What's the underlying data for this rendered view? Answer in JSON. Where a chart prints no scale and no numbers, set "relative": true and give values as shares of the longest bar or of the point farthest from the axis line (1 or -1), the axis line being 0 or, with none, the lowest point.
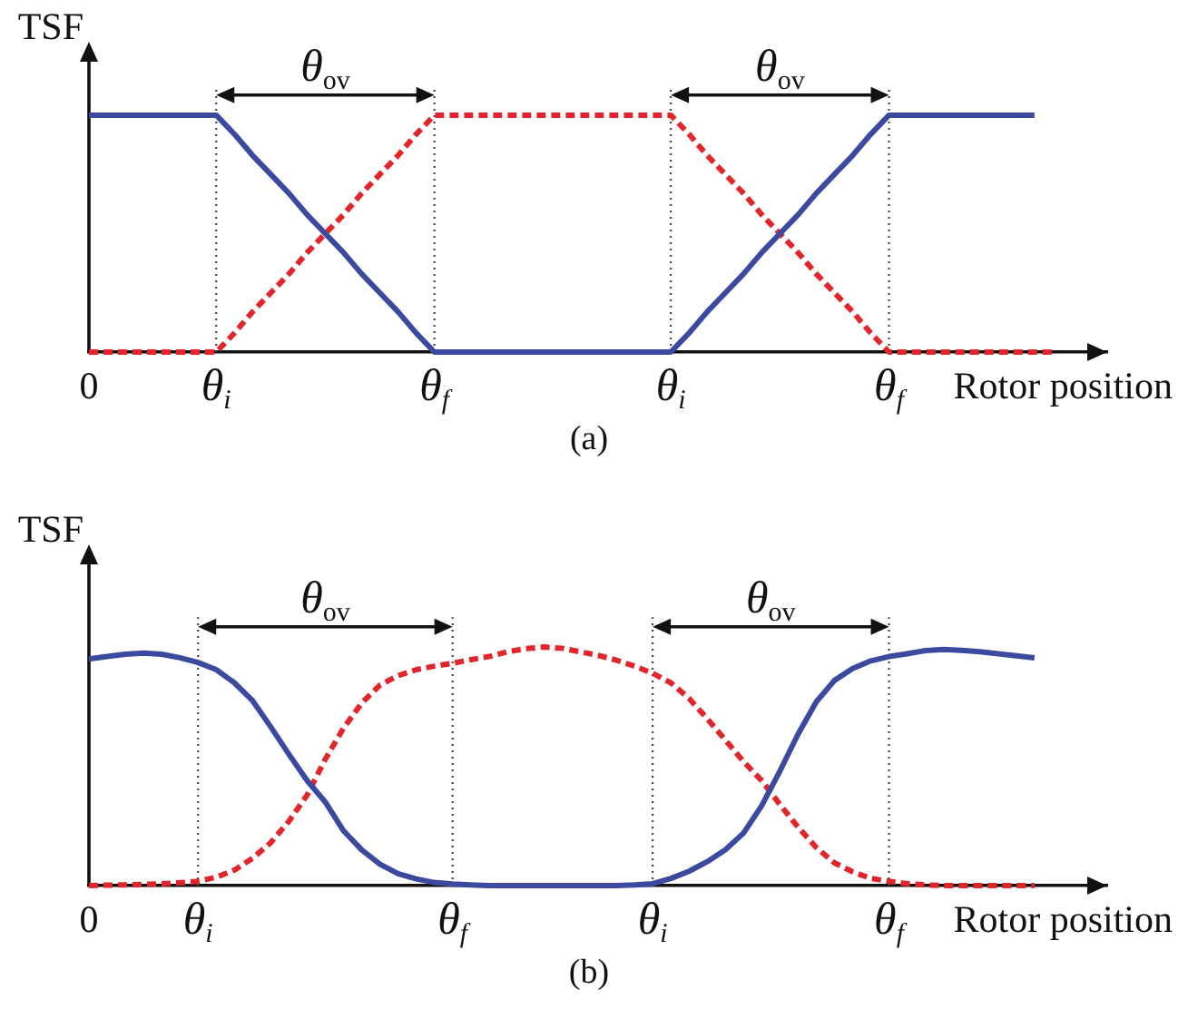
{
  "chart_data": [
    {
      "type": "line",
      "title": "(a)",
      "xlabel": "Rotor position",
      "ylabel": "TSF",
      "relative": true,
      "marker": "none",
      "grid": "x",
      "categories": [
        "0",
        null,
        null,
        null,
        null,
        null,
        null,
        "θ$_{i}$",
        null,
        null,
        null,
        null,
        null,
        null,
        null,
        null,
        null,
        null,
        null,
        "θ$_{f}$",
        null,
        null,
        null,
        null,
        null,
        null,
        null,
        null,
        null,
        null,
        null,
        null,
        "θ$_{i}$",
        null,
        null,
        null,
        null,
        null,
        null,
        null,
        null,
        null,
        null,
        null,
        "θ$_{f}$",
        null,
        null,
        null,
        null,
        null,
        null,
        null,
        null,
        null,
        null,
        null,
        null
      ],
      "series": [
        {
          "color": "#3b4a9e",
          "line_style": "solid",
          "values": [
            1,
            1,
            1,
            1,
            1,
            1,
            1,
            1,
            0.92,
            0.83,
            0.75,
            0.67,
            0.58,
            0.5,
            0.42,
            0.33,
            0.25,
            0.17,
            0.08,
            0,
            0,
            0,
            0,
            0,
            0,
            0,
            0,
            0,
            0,
            0,
            0,
            0,
            0,
            0.08,
            0.17,
            0.25,
            0.33,
            0.42,
            0.5,
            0.58,
            0.67,
            0.75,
            0.83,
            0.92,
            1,
            1,
            1,
            1,
            1,
            1,
            1,
            1,
            1,
            null,
            null,
            null,
            null
          ]
        },
        {
          "color": "#e2252b",
          "line_style": "dashed",
          "values": [
            0,
            0,
            0,
            0,
            0,
            0,
            0,
            0,
            0.08,
            0.17,
            0.25,
            0.33,
            0.42,
            0.5,
            0.58,
            0.67,
            0.75,
            0.83,
            0.92,
            1,
            1,
            1,
            1,
            1,
            1,
            1,
            1,
            1,
            1,
            1,
            1,
            1,
            1,
            0.92,
            0.83,
            0.75,
            0.67,
            0.58,
            0.5,
            0.42,
            0.33,
            0.25,
            0.17,
            0.08,
            0,
            0,
            0,
            0,
            0,
            0,
            0,
            0,
            0,
            0,
            null,
            null,
            null
          ]
        }
      ],
      "annotations": [
        "θ$_{ov}$",
        "θ$_{ov}$"
      ]
    },
    {
      "type": "line",
      "title": "(b)",
      "xlabel": "Rotor position",
      "ylabel": "TSF",
      "relative": true,
      "marker": "none",
      "grid": "x",
      "categories": [
        "0",
        null,
        null,
        null,
        null,
        null,
        "θ$_{i}$",
        null,
        null,
        null,
        null,
        null,
        null,
        null,
        null,
        null,
        null,
        null,
        null,
        null,
        "θ$_{f}$",
        null,
        null,
        null,
        null,
        null,
        null,
        null,
        null,
        null,
        null,
        "θ$_{i}$",
        null,
        null,
        null,
        null,
        null,
        null,
        null,
        null,
        null,
        null,
        null,
        null,
        "θ$_{f}$",
        null,
        null,
        null,
        null,
        null,
        null,
        null,
        null,
        null,
        null,
        null,
        null
      ],
      "series": [
        {
          "color": "#3b4a9e",
          "line_style": "solid",
          "values": [
            0.95,
            0.96,
            0.97,
            0.975,
            0.97,
            0.955,
            0.935,
            0.905,
            0.85,
            0.775,
            0.665,
            0.55,
            0.44,
            0.35,
            0.23,
            0.15,
            0.09,
            0.05,
            0.028,
            0.013,
            0.007,
            0.003,
            0,
            0,
            0,
            0,
            0,
            0,
            0,
            0,
            0.003,
            0.008,
            0.03,
            0.06,
            0.1,
            0.15,
            0.22,
            0.335,
            0.48,
            0.635,
            0.77,
            0.86,
            0.91,
            0.942,
            0.96,
            0.972,
            0.985,
            0.99,
            0.986,
            0.98,
            0.972,
            0.963,
            0.955,
            null,
            null,
            null,
            null
          ]
        },
        {
          "color": "#e2252b",
          "line_style": "dashed",
          "values": [
            0,
            0.002,
            0.003,
            0.005,
            0.008,
            0.012,
            0.018,
            0.035,
            0.065,
            0.115,
            0.18,
            0.27,
            0.38,
            0.53,
            0.66,
            0.765,
            0.84,
            0.88,
            0.905,
            0.92,
            0.932,
            0.947,
            0.96,
            0.98,
            0.993,
            1,
            0.995,
            0.98,
            0.965,
            0.945,
            0.92,
            0.89,
            0.85,
            0.785,
            0.7,
            0.61,
            0.52,
            0.44,
            0.34,
            0.245,
            0.16,
            0.095,
            0.058,
            0.03,
            0.018,
            0.008,
            0.003,
            0,
            0,
            0,
            0,
            0,
            0,
            null,
            null,
            null,
            null
          ]
        }
      ],
      "annotations": [
        "θ$_{ov}$",
        "θ$_{ov}$"
      ]
    }
  ]
}
